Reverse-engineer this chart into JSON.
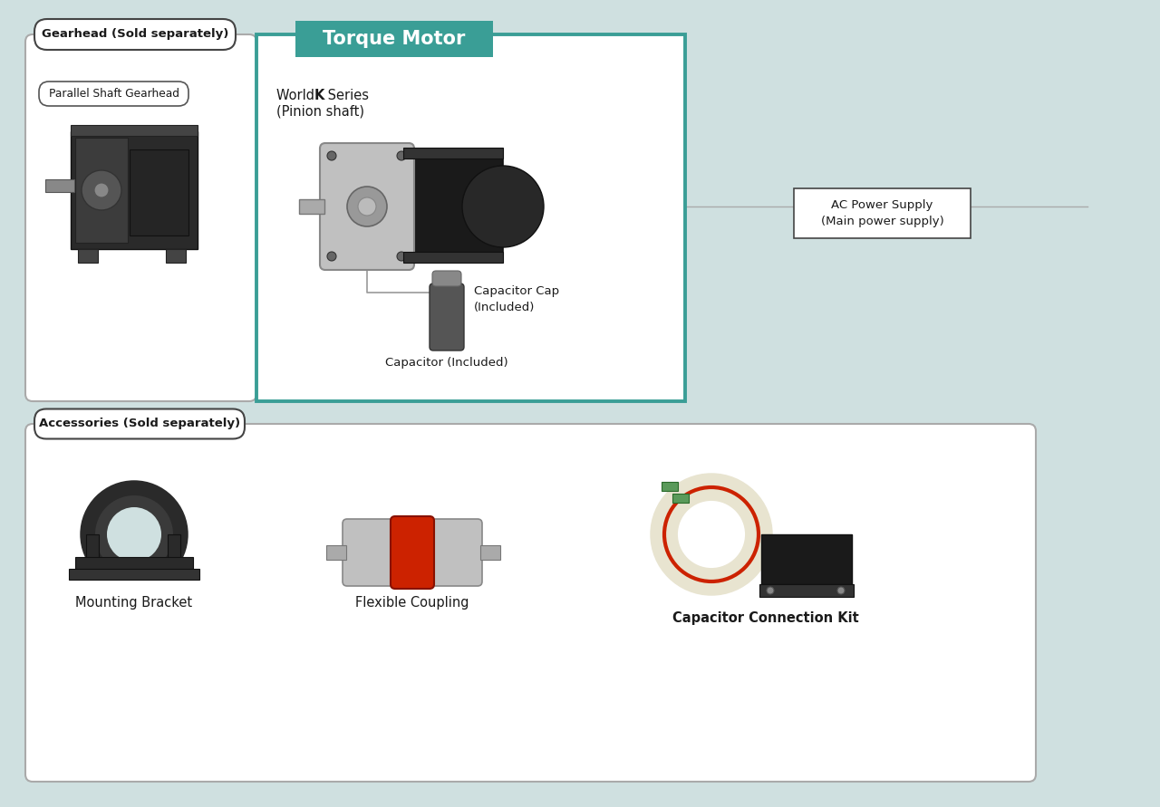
{
  "bg_color": "#cfe0e0",
  "teal_color": "#3a9e96",
  "white": "#ffffff",
  "dark_text": "#1a1a1a",
  "border_color": "#999999",
  "title": "Torque Motor",
  "gearhead_label": "Gearhead (Sold separately)",
  "parallel_shaft_label": "Parallel Shaft Gearhead",
  "world_k_pre": "World ",
  "world_k_bold": "K",
  "world_k_post": " Series",
  "world_k_sub": "(Pinion shaft)",
  "capacitor_cap_label": "Capacitor Cap\n(Included)",
  "capacitor_label": "Capacitor (Included)",
  "ac_power_label": "AC Power Supply\n(Main power supply)",
  "accessories_label": "Accessories (Sold separately)",
  "mounting_bracket_label": "Mounting Bracket",
  "flexible_coupling_label": "Flexible Coupling",
  "capacitor_kit_label": "Capacitor Connection Kit"
}
